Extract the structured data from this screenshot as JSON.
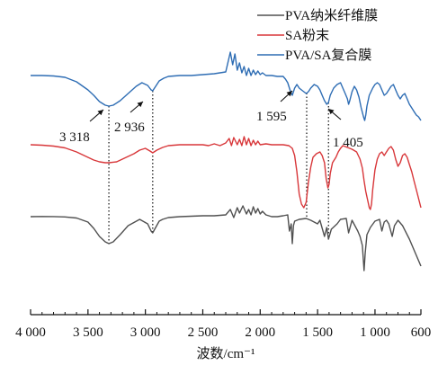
{
  "chart_data": {
    "type": "line",
    "xlabel": "波数/cm⁻¹",
    "xlim": [
      4000,
      600
    ],
    "x_reversed": true,
    "xticks": [
      4000,
      3500,
      3000,
      2500,
      2000,
      1500,
      1000,
      600
    ],
    "xtick_labels": [
      "4 000",
      "3 500",
      "3 000",
      "2 500",
      "2 000",
      "1 500",
      "1 000",
      "600"
    ],
    "y_axis_shown": false,
    "grid": false,
    "legend_position": "top-right",
    "series": [
      {
        "name": "PVA纳米纤维膜",
        "color": "#505050",
        "offset": 0,
        "points": [
          [
            4000,
            0
          ],
          [
            3900,
            0.2
          ],
          [
            3800,
            0.1
          ],
          [
            3700,
            -0.3
          ],
          [
            3600,
            -1.5
          ],
          [
            3500,
            -6
          ],
          [
            3450,
            -13
          ],
          [
            3400,
            -22
          ],
          [
            3350,
            -28
          ],
          [
            3318,
            -30
          ],
          [
            3280,
            -28
          ],
          [
            3220,
            -20
          ],
          [
            3150,
            -10
          ],
          [
            3050,
            -3
          ],
          [
            2980,
            -8
          ],
          [
            2950,
            -16
          ],
          [
            2936,
            -18
          ],
          [
            2910,
            -12
          ],
          [
            2880,
            -5
          ],
          [
            2850,
            -3
          ],
          [
            2800,
            -1
          ],
          [
            2700,
            0
          ],
          [
            2600,
            0.5
          ],
          [
            2500,
            1
          ],
          [
            2400,
            1
          ],
          [
            2300,
            2
          ],
          [
            2260,
            8
          ],
          [
            2230,
            -1
          ],
          [
            2200,
            10
          ],
          [
            2180,
            4
          ],
          [
            2150,
            12
          ],
          [
            2120,
            3
          ],
          [
            2100,
            8
          ],
          [
            2080,
            2
          ],
          [
            2060,
            11
          ],
          [
            2040,
            4
          ],
          [
            2020,
            9
          ],
          [
            2000,
            3
          ],
          [
            1980,
            6
          ],
          [
            1950,
            2
          ],
          [
            1900,
            0
          ],
          [
            1850,
            0
          ],
          [
            1800,
            1
          ],
          [
            1760,
            2
          ],
          [
            1745,
            -16
          ],
          [
            1730,
            -8
          ],
          [
            1720,
            -30
          ],
          [
            1710,
            -10
          ],
          [
            1700,
            -5
          ],
          [
            1660,
            -3
          ],
          [
            1600,
            -2
          ],
          [
            1560,
            -4
          ],
          [
            1500,
            -8
          ],
          [
            1480,
            -4
          ],
          [
            1440,
            -22
          ],
          [
            1420,
            -12
          ],
          [
            1405,
            -25
          ],
          [
            1380,
            -14
          ],
          [
            1330,
            -8
          ],
          [
            1300,
            -3
          ],
          [
            1250,
            -2
          ],
          [
            1230,
            -18
          ],
          [
            1200,
            -4
          ],
          [
            1150,
            -16
          ],
          [
            1130,
            -22
          ],
          [
            1110,
            -32
          ],
          [
            1095,
            -60
          ],
          [
            1085,
            -40
          ],
          [
            1070,
            -20
          ],
          [
            1040,
            -12
          ],
          [
            1000,
            -5
          ],
          [
            960,
            -3
          ],
          [
            940,
            -16
          ],
          [
            920,
            -6
          ],
          [
            900,
            -4
          ],
          [
            880,
            -8
          ],
          [
            850,
            -22
          ],
          [
            830,
            -10
          ],
          [
            800,
            -4
          ],
          [
            760,
            -10
          ],
          [
            700,
            -25
          ],
          [
            650,
            -40
          ],
          [
            600,
            -55
          ]
        ]
      },
      {
        "name": "SA粉末",
        "color": "#d8373a",
        "offset": 80,
        "points": [
          [
            4000,
            0
          ],
          [
            3900,
            -0.5
          ],
          [
            3800,
            -1.5
          ],
          [
            3700,
            -3.5
          ],
          [
            3600,
            -8
          ],
          [
            3500,
            -14
          ],
          [
            3450,
            -17
          ],
          [
            3400,
            -19
          ],
          [
            3350,
            -20
          ],
          [
            3318,
            -20
          ],
          [
            3250,
            -19
          ],
          [
            3200,
            -16
          ],
          [
            3100,
            -10
          ],
          [
            3050,
            -6
          ],
          [
            3000,
            -4
          ],
          [
            2960,
            -7
          ],
          [
            2936,
            -9
          ],
          [
            2900,
            -6
          ],
          [
            2850,
            -3
          ],
          [
            2800,
            -1
          ],
          [
            2700,
            0
          ],
          [
            2600,
            0
          ],
          [
            2500,
            0
          ],
          [
            2450,
            -1
          ],
          [
            2400,
            1
          ],
          [
            2350,
            -1
          ],
          [
            2300,
            2
          ],
          [
            2270,
            7
          ],
          [
            2250,
            -1
          ],
          [
            2230,
            8
          ],
          [
            2200,
            0
          ],
          [
            2180,
            6
          ],
          [
            2160,
            -1
          ],
          [
            2140,
            9
          ],
          [
            2120,
            0
          ],
          [
            2100,
            7
          ],
          [
            2080,
            -1
          ],
          [
            2060,
            5
          ],
          [
            2040,
            0
          ],
          [
            2020,
            4
          ],
          [
            2000,
            0
          ],
          [
            1950,
            1
          ],
          [
            1900,
            0
          ],
          [
            1850,
            0
          ],
          [
            1800,
            0
          ],
          [
            1750,
            -1
          ],
          [
            1720,
            -4
          ],
          [
            1700,
            -12
          ],
          [
            1680,
            -30
          ],
          [
            1660,
            -55
          ],
          [
            1640,
            -66
          ],
          [
            1620,
            -70
          ],
          [
            1600,
            -64
          ],
          [
            1580,
            -42
          ],
          [
            1560,
            -25
          ],
          [
            1540,
            -14
          ],
          [
            1510,
            -10
          ],
          [
            1480,
            -8
          ],
          [
            1460,
            -12
          ],
          [
            1440,
            -20
          ],
          [
            1425,
            -38
          ],
          [
            1410,
            -48
          ],
          [
            1400,
            -44
          ],
          [
            1390,
            -32
          ],
          [
            1370,
            -20
          ],
          [
            1340,
            -14
          ],
          [
            1320,
            -8
          ],
          [
            1300,
            -4
          ],
          [
            1280,
            -1
          ],
          [
            1260,
            -2
          ],
          [
            1240,
            -3
          ],
          [
            1200,
            -5
          ],
          [
            1160,
            -8
          ],
          [
            1130,
            -16
          ],
          [
            1110,
            -26
          ],
          [
            1095,
            -40
          ],
          [
            1080,
            -52
          ],
          [
            1070,
            -58
          ],
          [
            1060,
            -64
          ],
          [
            1050,
            -70
          ],
          [
            1040,
            -72
          ],
          [
            1030,
            -66
          ],
          [
            1020,
            -50
          ],
          [
            1000,
            -28
          ],
          [
            980,
            -16
          ],
          [
            960,
            -10
          ],
          [
            940,
            -8
          ],
          [
            920,
            -12
          ],
          [
            900,
            -8
          ],
          [
            880,
            -4
          ],
          [
            860,
            -2
          ],
          [
            840,
            -6
          ],
          [
            820,
            -16
          ],
          [
            800,
            -24
          ],
          [
            780,
            -20
          ],
          [
            760,
            -12
          ],
          [
            740,
            -10
          ],
          [
            720,
            -14
          ],
          [
            700,
            -22
          ],
          [
            680,
            -30
          ],
          [
            660,
            -40
          ],
          [
            640,
            -50
          ],
          [
            600,
            -70
          ]
        ]
      },
      {
        "name": "PVA/SA复合膜",
        "color": "#2e6db4",
        "offset": 157,
        "points": [
          [
            4000,
            0
          ],
          [
            3900,
            0
          ],
          [
            3800,
            -0.5
          ],
          [
            3700,
            -2
          ],
          [
            3600,
            -7
          ],
          [
            3500,
            -16
          ],
          [
            3450,
            -22
          ],
          [
            3400,
            -29
          ],
          [
            3350,
            -33
          ],
          [
            3318,
            -34
          ],
          [
            3280,
            -33
          ],
          [
            3220,
            -28
          ],
          [
            3150,
            -20
          ],
          [
            3080,
            -12
          ],
          [
            3030,
            -8
          ],
          [
            2980,
            -11
          ],
          [
            2950,
            -16
          ],
          [
            2936,
            -17
          ],
          [
            2910,
            -12
          ],
          [
            2880,
            -6
          ],
          [
            2840,
            -3
          ],
          [
            2800,
            -1
          ],
          [
            2700,
            0
          ],
          [
            2600,
            0
          ],
          [
            2500,
            1
          ],
          [
            2400,
            2
          ],
          [
            2300,
            4
          ],
          [
            2260,
            26
          ],
          [
            2240,
            12
          ],
          [
            2220,
            24
          ],
          [
            2200,
            6
          ],
          [
            2180,
            14
          ],
          [
            2160,
            3
          ],
          [
            2140,
            10
          ],
          [
            2120,
            0
          ],
          [
            2100,
            8
          ],
          [
            2080,
            0
          ],
          [
            2060,
            6
          ],
          [
            2040,
            1
          ],
          [
            2020,
            5
          ],
          [
            2000,
            1
          ],
          [
            1980,
            3
          ],
          [
            1950,
            0
          ],
          [
            1900,
            0
          ],
          [
            1850,
            -1
          ],
          [
            1800,
            -1
          ],
          [
            1780,
            -4
          ],
          [
            1760,
            -8
          ],
          [
            1745,
            -14
          ],
          [
            1735,
            -18
          ],
          [
            1720,
            -22
          ],
          [
            1700,
            -14
          ],
          [
            1680,
            -10
          ],
          [
            1660,
            -14
          ],
          [
            1640,
            -16
          ],
          [
            1620,
            -18
          ],
          [
            1600,
            -20
          ],
          [
            1580,
            -18
          ],
          [
            1560,
            -14
          ],
          [
            1530,
            -10
          ],
          [
            1500,
            -12
          ],
          [
            1480,
            -16
          ],
          [
            1460,
            -22
          ],
          [
            1440,
            -28
          ],
          [
            1420,
            -32
          ],
          [
            1405,
            -30
          ],
          [
            1390,
            -22
          ],
          [
            1360,
            -14
          ],
          [
            1330,
            -10
          ],
          [
            1300,
            -8
          ],
          [
            1280,
            -14
          ],
          [
            1260,
            -20
          ],
          [
            1240,
            -26
          ],
          [
            1230,
            -32
          ],
          [
            1220,
            -28
          ],
          [
            1200,
            -18
          ],
          [
            1180,
            -12
          ],
          [
            1160,
            -16
          ],
          [
            1140,
            -24
          ],
          [
            1120,
            -36
          ],
          [
            1100,
            -46
          ],
          [
            1090,
            -50
          ],
          [
            1080,
            -44
          ],
          [
            1070,
            -34
          ],
          [
            1050,
            -22
          ],
          [
            1020,
            -14
          ],
          [
            1000,
            -10
          ],
          [
            980,
            -8
          ],
          [
            960,
            -10
          ],
          [
            940,
            -16
          ],
          [
            920,
            -22
          ],
          [
            900,
            -20
          ],
          [
            880,
            -16
          ],
          [
            860,
            -12
          ],
          [
            840,
            -10
          ],
          [
            820,
            -16
          ],
          [
            800,
            -22
          ],
          [
            780,
            -26
          ],
          [
            760,
            -22
          ],
          [
            740,
            -20
          ],
          [
            720,
            -26
          ],
          [
            700,
            -32
          ],
          [
            680,
            -36
          ],
          [
            660,
            -40
          ],
          [
            640,
            -44
          ],
          [
            620,
            -46
          ],
          [
            600,
            -50
          ]
        ]
      }
    ],
    "annotations": [
      {
        "text": "3 318",
        "x": 3318
      },
      {
        "text": "2 936",
        "x": 2936
      },
      {
        "text": "1 595",
        "x": 1595
      },
      {
        "text": "1 405",
        "x": 1405
      }
    ]
  }
}
